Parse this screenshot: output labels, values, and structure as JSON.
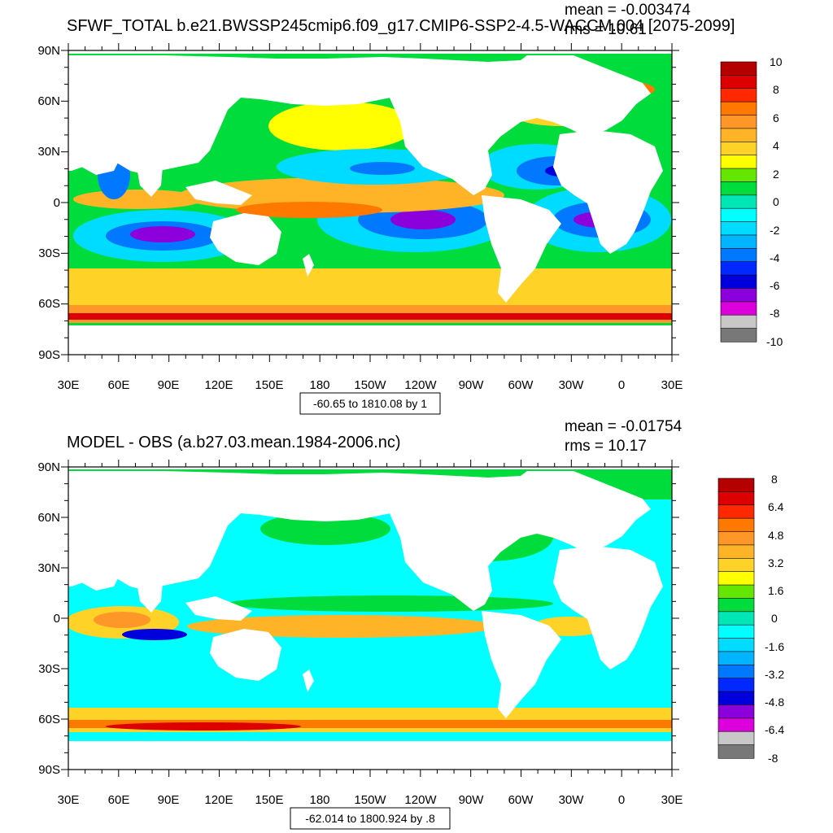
{
  "panels": [
    {
      "title": "SFWF_TOTAL b.e21.BWSSP245cmip6.f09_g17.CMIP6-SSP2-4.5-WACCM.004 [2075-2099]",
      "mean_label": "mean = -0.003474",
      "rms_label": "rms = 10.61",
      "range_label": "-60.65 to 1810.08 by 1",
      "lat_ticks": [
        "90N",
        "60N",
        "30N",
        "0",
        "30S",
        "60S",
        "90S"
      ],
      "lon_ticks": [
        "30E",
        "60E",
        "90E",
        "120E",
        "150E",
        "180",
        "150W",
        "120W",
        "90W",
        "60W",
        "30W",
        "0",
        "30E"
      ],
      "colorbar_labels": [
        "10",
        "8",
        "6",
        "4",
        "2",
        "0",
        "-2",
        "-4",
        "-6",
        "-8",
        "-10"
      ]
    },
    {
      "title": "MODEL - OBS (a.b27.03.mean.1984-2006.nc)",
      "mean_label": "mean = -0.01754",
      "rms_label": "rms = 10.17",
      "range_label": "-62.014 to 1800.924 by .8",
      "lat_ticks": [
        "90N",
        "60N",
        "30N",
        "0",
        "30S",
        "60S",
        "90S"
      ],
      "lon_ticks": [
        "30E",
        "60E",
        "90E",
        "120E",
        "150E",
        "180",
        "150W",
        "120W",
        "90W",
        "60W",
        "30W",
        "0",
        "30E"
      ],
      "colorbar_labels": [
        "8",
        "6.4",
        "4.8",
        "3.2",
        "1.6",
        "0",
        "-1.6",
        "-3.2",
        "-4.8",
        "-6.4",
        "-8"
      ]
    }
  ],
  "colorbar_colors": [
    "#b40000",
    "#dc0000",
    "#ff2800",
    "#ff7800",
    "#ff9628",
    "#ffb428",
    "#ffd228",
    "#ffff00",
    "#64e600",
    "#00dc3c",
    "#00e6b4",
    "#00ffff",
    "#00dcff",
    "#00b4ff",
    "#0078ff",
    "#0028ff",
    "#0000dc",
    "#8c00dc",
    "#dc00dc",
    "#c8c8c8",
    "#787878"
  ],
  "colors": {
    "land": "#ffffff",
    "frame": "#000000"
  }
}
